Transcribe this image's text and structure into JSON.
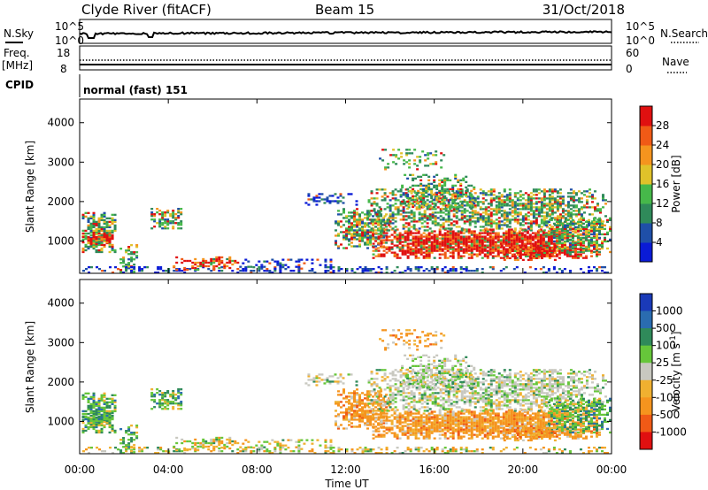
{
  "header": {
    "station": "Clyde River (fitACF)",
    "beam": "Beam 15",
    "date": "31/Oct/2018"
  },
  "panel_labels": {
    "nsky": "N.Sky",
    "nsearch": "N.Search",
    "freq": "Freq.",
    "freq_unit": "[MHz]",
    "nave": "Nave",
    "cpid": "CPID",
    "cpid_value": "normal (fast) 151"
  },
  "noise_ticks": {
    "left_top": "10^5",
    "left_bottom": "10^0",
    "right_top": "10^5",
    "right_bottom": "10^0"
  },
  "freq_ticks": {
    "left_top": "18",
    "left_bottom": "8",
    "right_top": "60",
    "right_bottom": "0"
  },
  "colors": {
    "power_scale": [
      "#0a1bd6",
      "#1f4fa8",
      "#2f8a5a",
      "#46b84a",
      "#e0c22a",
      "#f5941e",
      "#f05a16",
      "#e01010"
    ],
    "velocity_scale": [
      "#e01010",
      "#f05a16",
      "#f5941e",
      "#f0b030",
      "#c8c8c0",
      "#66c63a",
      "#2f8a5a",
      "#2a6cb0",
      "#1a3ab8"
    ]
  },
  "chart_data": [
    {
      "type": "heatmap",
      "name": "power-panel",
      "xlabel": "",
      "ylabel": "Slant Range [km]",
      "ylim": [
        180,
        4600
      ],
      "xlim": [
        "00:00",
        "24:00"
      ],
      "yticks": [
        "1000",
        "2000",
        "3000",
        "4000"
      ],
      "colorbar": {
        "label": "Power [dB]",
        "ticks": [
          "4",
          "8",
          "12",
          "16",
          "20",
          "24",
          "28"
        ],
        "range": [
          0,
          32
        ]
      }
    },
    {
      "type": "heatmap",
      "name": "velocity-panel",
      "xlabel": "Time UT",
      "ylabel": "Slant Range [km]",
      "ylim": [
        180,
        4600
      ],
      "xlim": [
        "00:00",
        "24:00"
      ],
      "xticks": [
        "00:00",
        "04:00",
        "08:00",
        "12:00",
        "16:00",
        "20:00",
        "00:00"
      ],
      "yticks": [
        "1000",
        "2000",
        "3000",
        "4000"
      ],
      "colorbar": {
        "label": "Velocity [m s^-1]",
        "ticks": [
          "1000",
          "500",
          "100",
          "25",
          "-25",
          "-100",
          "-500",
          "-1000"
        ]
      }
    }
  ]
}
